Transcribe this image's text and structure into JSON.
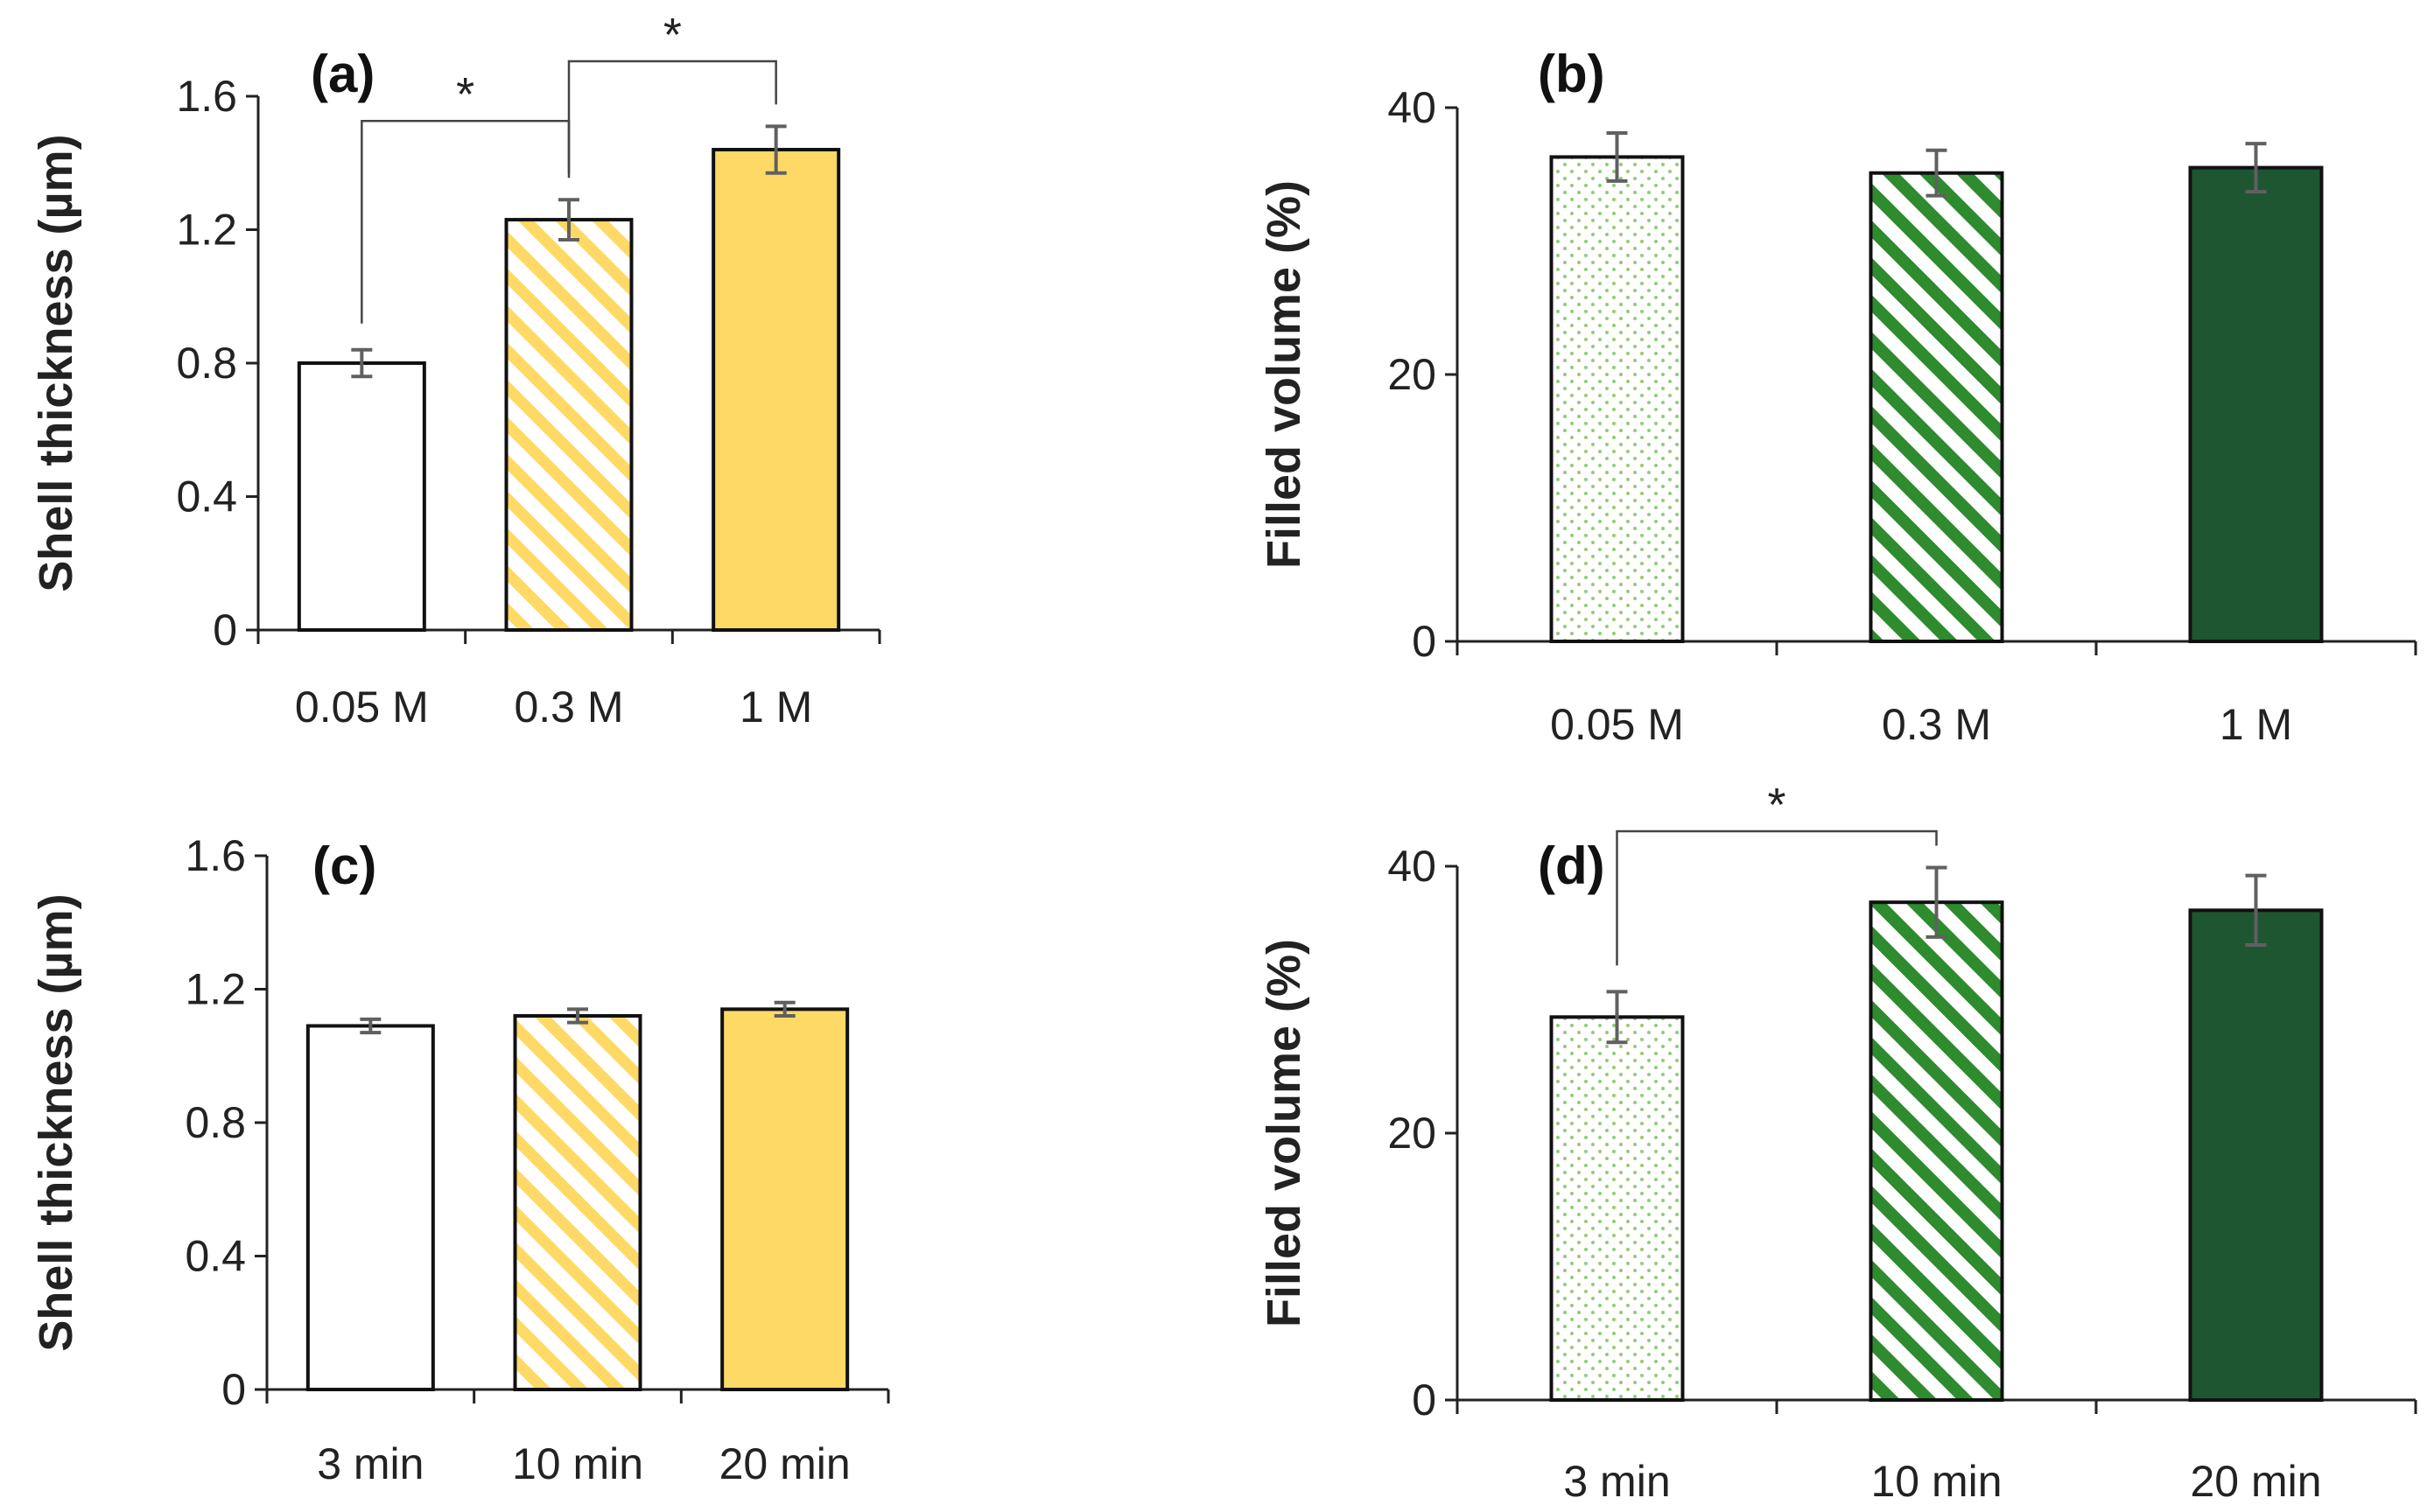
{
  "colors": {
    "gold": "#FFD966",
    "dark_green": "#1E5631",
    "mid_green": "#2E8B2E",
    "light_green": "#8FCC78",
    "bar_outline": "#111111",
    "error_bar": "#606060"
  },
  "chart_data": [
    {
      "type": "bar",
      "panel_label": "(a)",
      "categories": [
        "0.05 M",
        "0.3 M",
        "1 M"
      ],
      "values": [
        0.8,
        1.23,
        1.44
      ],
      "errors": [
        0.04,
        0.06,
        0.07
      ],
      "fills": [
        "white",
        "gold-stripe",
        "gold"
      ],
      "ylabel": "Shell thickness (µm)",
      "xlabel": "",
      "ylim": [
        0,
        1.6
      ],
      "yticks": [
        0,
        0.4,
        0.8,
        1.2,
        1.6
      ],
      "ytick_labels": [
        "0",
        "0.4",
        "0.8",
        "1.2",
        "1.6"
      ],
      "significance": [
        {
          "from": 0,
          "to": 1,
          "label": "*"
        },
        {
          "from": 1,
          "to": 2,
          "label": "*"
        }
      ]
    },
    {
      "type": "bar",
      "panel_label": "(b)",
      "categories": [
        "0.05 M",
        "0.3 M",
        "1 M"
      ],
      "values": [
        36.3,
        35.1,
        35.5
      ],
      "errors": [
        1.8,
        1.7,
        1.8
      ],
      "fills": [
        "green-dots",
        "green-stripe",
        "dark-green"
      ],
      "ylabel": "Filled volume (%)",
      "xlabel": "",
      "ylim": [
        0,
        40
      ],
      "yticks": [
        0,
        20,
        40
      ],
      "ytick_labels": [
        "0",
        "20",
        "40"
      ],
      "significance": []
    },
    {
      "type": "bar",
      "panel_label": "(c)",
      "categories": [
        "3 min",
        "10 min",
        "20 min"
      ],
      "values": [
        1.09,
        1.12,
        1.14
      ],
      "errors": [
        0.02,
        0.02,
        0.02
      ],
      "fills": [
        "white",
        "gold-stripe",
        "gold"
      ],
      "ylabel": "Shell thickness (µm)",
      "xlabel": "",
      "ylim": [
        0,
        1.6
      ],
      "yticks": [
        0,
        0.4,
        0.8,
        1.2,
        1.6
      ],
      "ytick_labels": [
        "0",
        "0.4",
        "0.8",
        "1.2",
        "1.6"
      ],
      "significance": []
    },
    {
      "type": "bar",
      "panel_label": "(d)",
      "categories": [
        "3 min",
        "10 min",
        "20 min"
      ],
      "values": [
        28.7,
        37.3,
        36.7
      ],
      "errors": [
        1.9,
        2.6,
        2.6
      ],
      "fills": [
        "green-dots",
        "green-stripe",
        "dark-green"
      ],
      "ylabel": "Filled volume (%)",
      "xlabel": "",
      "ylim": [
        0,
        40
      ],
      "yticks": [
        0,
        20,
        40
      ],
      "ytick_labels": [
        "0",
        "20",
        "40"
      ],
      "significance": [
        {
          "from": 0,
          "to": 1,
          "label": "*"
        }
      ]
    }
  ]
}
